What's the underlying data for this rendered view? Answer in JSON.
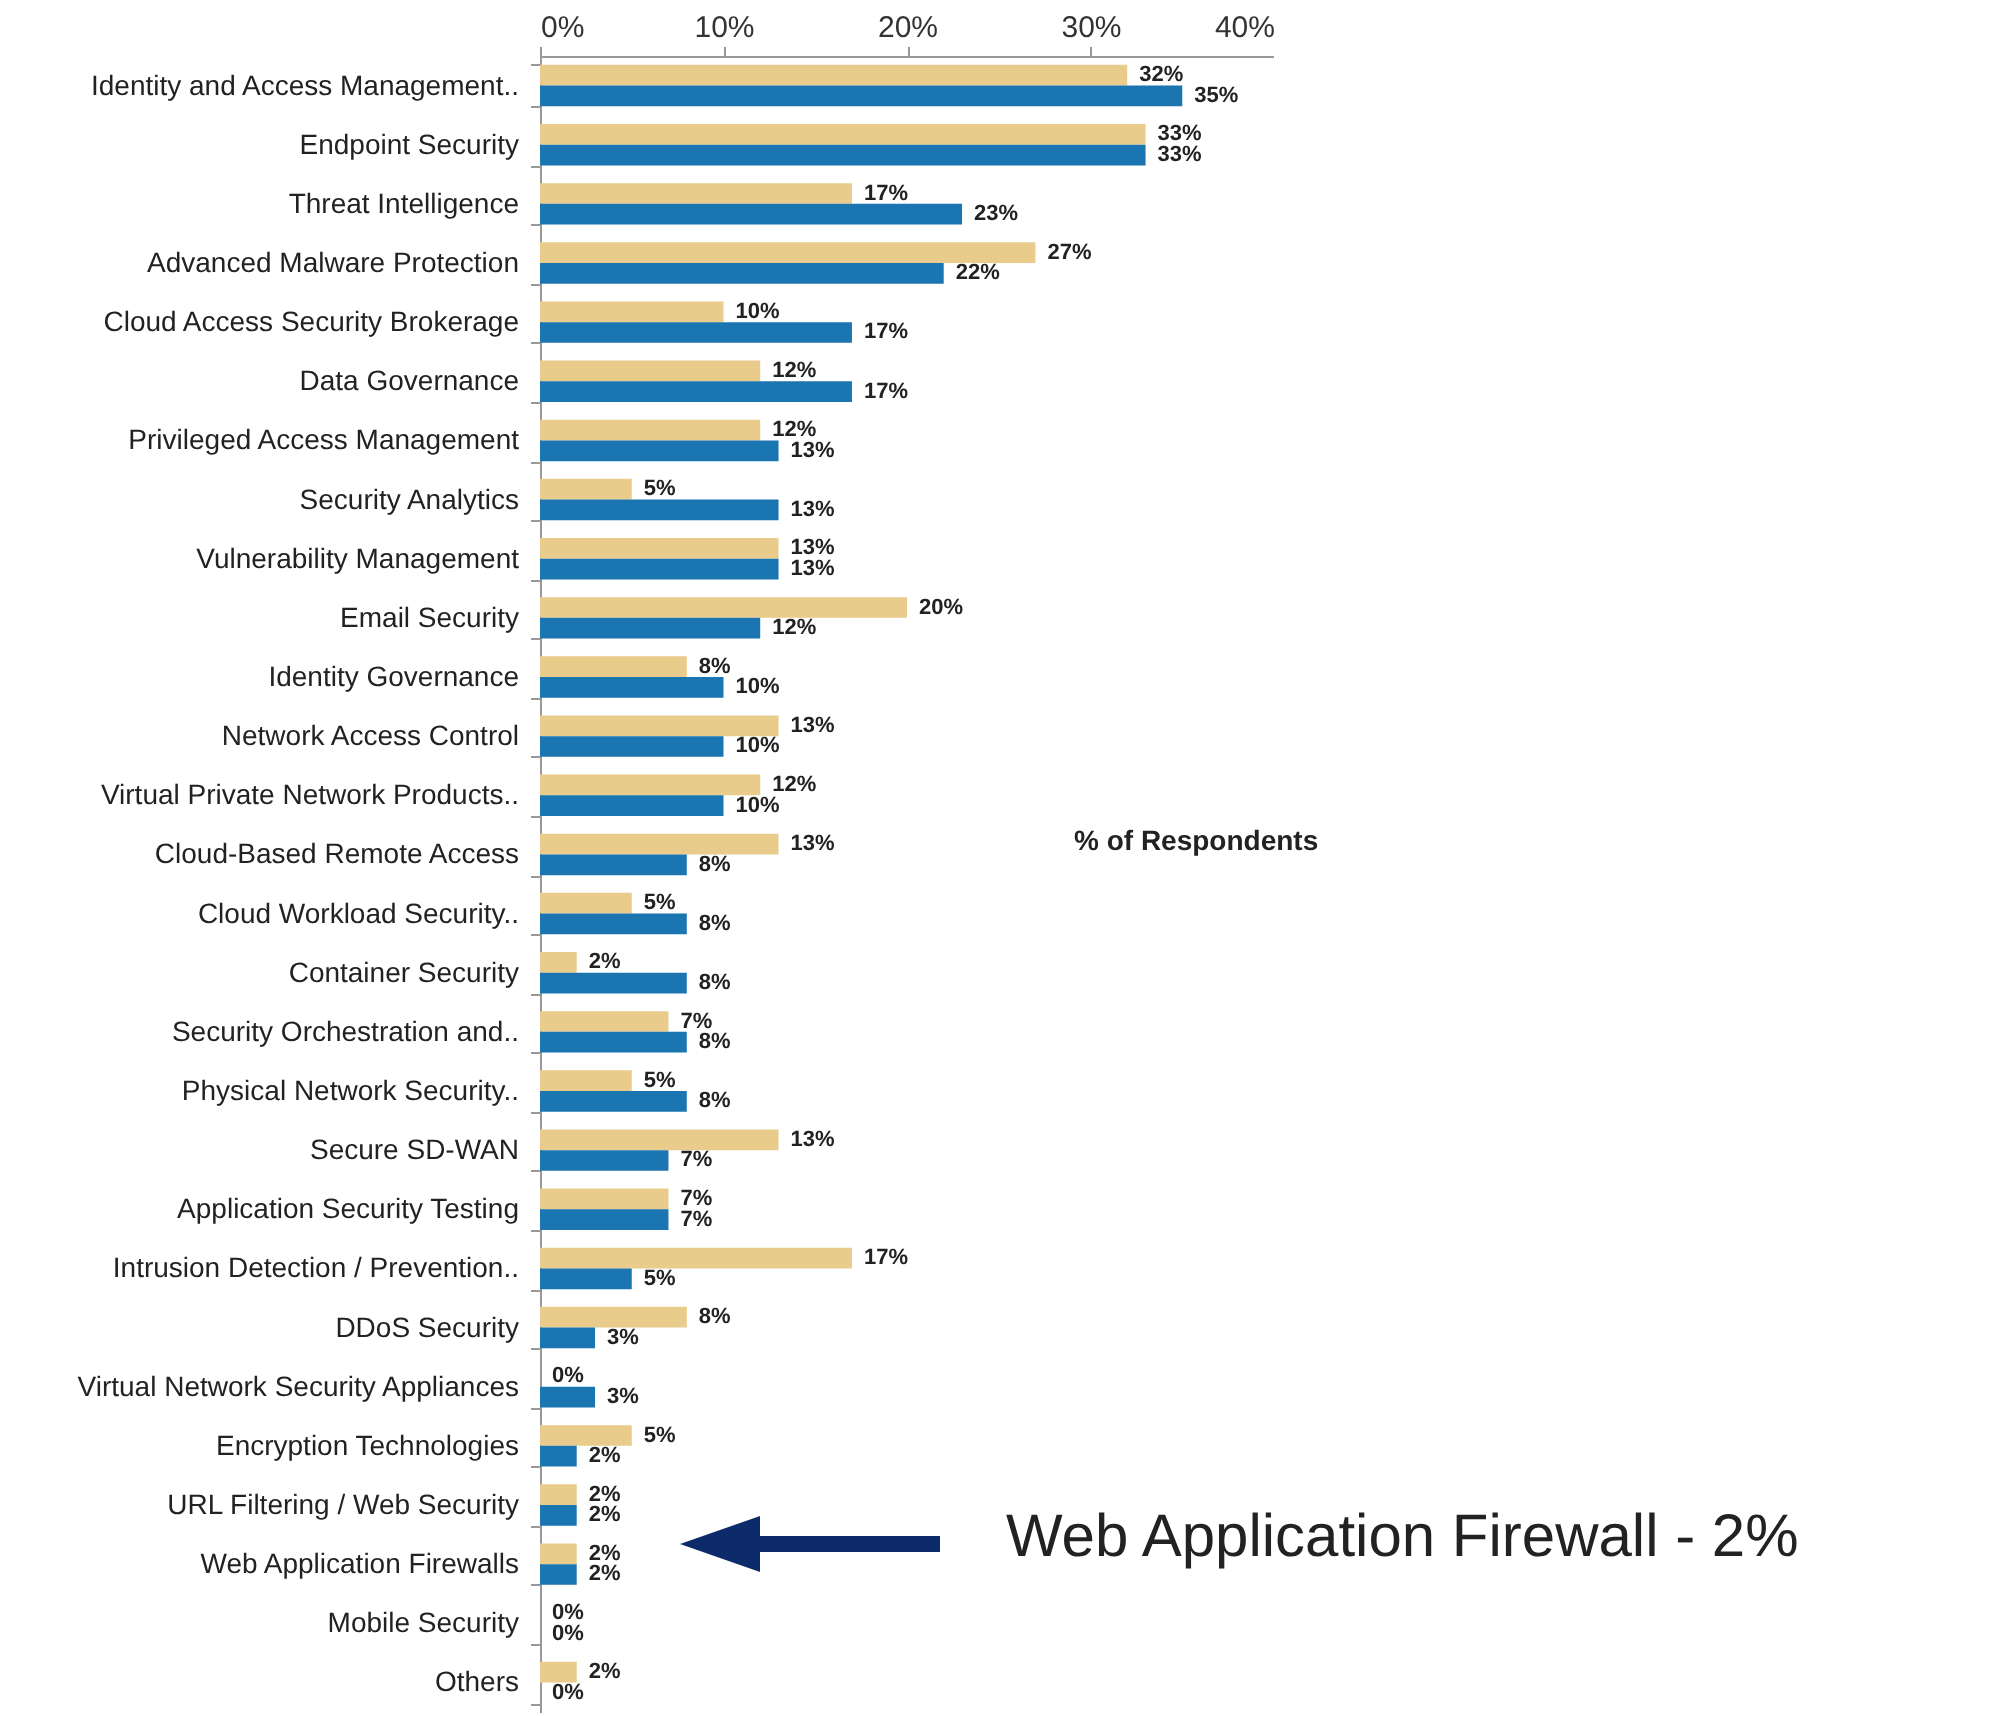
{
  "chart_data": {
    "type": "bar",
    "orientation": "horizontal",
    "categories": [
      "Identity and Access Management..",
      "Endpoint Security",
      "Threat Intelligence",
      "Advanced Malware Protection",
      "Cloud Access Security Brokerage",
      "Data Governance",
      "Privileged Access Management",
      "Security Analytics",
      "Vulnerability Management",
      "Email Security",
      "Identity Governance",
      "Network Access Control",
      "Virtual Private Network Products..",
      "Cloud-Based Remote Access",
      "Cloud Workload Security..",
      "Container Security",
      "Security Orchestration and..",
      "Physical Network Security..",
      "Secure SD-WAN",
      "Application Security Testing",
      "Intrusion Detection / Prevention..",
      "DDoS Security",
      "Virtual Network Security Appliances",
      "Encryption Technologies",
      "URL Filtering / Web Security",
      "Web Application Firewalls",
      "Mobile Security",
      "Others"
    ],
    "series": [
      {
        "color": "#e9cb8b",
        "values": [
          32,
          33,
          17,
          27,
          10,
          12,
          12,
          5,
          13,
          20,
          8,
          13,
          12,
          13,
          5,
          2,
          7,
          5,
          13,
          7,
          17,
          8,
          0,
          5,
          2,
          2,
          0,
          2
        ],
        "value_labels": [
          "32%",
          "33%",
          "17%",
          "27%",
          "10%",
          "12%",
          "12%",
          "5%",
          "13%",
          "20%",
          "8%",
          "13%",
          "12%",
          "13%",
          "5%",
          "2%",
          "7%",
          "5%",
          "13%",
          "7%",
          "17%",
          "8%",
          "0%",
          "5%",
          "2%",
          "2%",
          "0%",
          "2%"
        ]
      },
      {
        "color": "#1b75b1",
        "values": [
          35,
          33,
          23,
          22,
          17,
          17,
          13,
          13,
          13,
          12,
          10,
          10,
          10,
          8,
          8,
          8,
          8,
          8,
          7,
          7,
          5,
          3,
          3,
          2,
          2,
          2,
          0,
          0
        ],
        "value_labels": [
          "35%",
          "33%",
          "23%",
          "22%",
          "17%",
          "17%",
          "13%",
          "13%",
          "13%",
          "12%",
          "10%",
          "10%",
          "10%",
          "8%",
          "8%",
          "8%",
          "8%",
          "8%",
          "7%",
          "7%",
          "5%",
          "3%",
          "3%",
          "2%",
          "2%",
          "2%",
          "0%",
          "0%"
        ]
      }
    ],
    "xlim": [
      0,
      40
    ],
    "xticks": [
      {
        "value": 0,
        "label": "0%"
      },
      {
        "value": 10,
        "label": "10%"
      },
      {
        "value": 20,
        "label": "20%"
      },
      {
        "value": 30,
        "label": "30%"
      },
      {
        "value": 40,
        "label": "40%"
      }
    ],
    "grid": false,
    "annotations": [
      "% of Respondents",
      "Web Application Firewall - 2%"
    ]
  }
}
